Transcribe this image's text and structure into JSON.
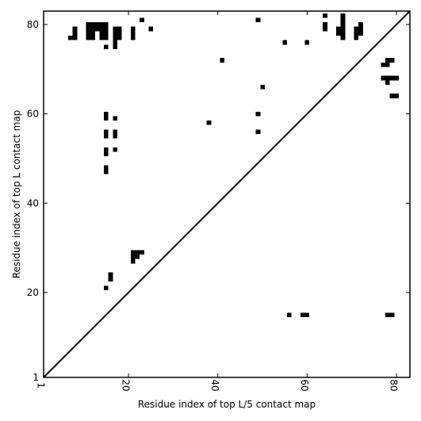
{
  "chart_data": {
    "type": "heatmap",
    "title": "",
    "xlabel": "Residue index of top L/5 contact map",
    "ylabel": "Residue index of top L contact map",
    "xlim": [
      1,
      83
    ],
    "ylim": [
      1,
      83
    ],
    "x_ticks": [
      {
        "value": 1,
        "label": "1"
      },
      {
        "value": 20,
        "label": "20"
      },
      {
        "value": 40,
        "label": "40"
      },
      {
        "value": 60,
        "label": "60"
      },
      {
        "value": 80,
        "label": "80"
      }
    ],
    "y_ticks": [
      {
        "value": 1,
        "label": "1"
      },
      {
        "value": 20,
        "label": "20"
      },
      {
        "value": 40,
        "label": "40"
      },
      {
        "value": 60,
        "label": "60"
      },
      {
        "value": 80,
        "label": "80"
      }
    ],
    "x_tick_rotation": "vertical",
    "grid": false,
    "legend": "none",
    "diagonal": {
      "from": [
        1,
        1
      ],
      "to": [
        83,
        83
      ]
    },
    "contact_color": "#000000",
    "background_color": "#ffffff",
    "contacts": [
      [
        8,
        79
      ],
      [
        8,
        78
      ],
      [
        7,
        77
      ],
      [
        8,
        77
      ],
      [
        11,
        80
      ],
      [
        12,
        80
      ],
      [
        13,
        80
      ],
      [
        14,
        80
      ],
      [
        15,
        80
      ],
      [
        11,
        79
      ],
      [
        12,
        79
      ],
      [
        13,
        79
      ],
      [
        14,
        79
      ],
      [
        15,
        79
      ],
      [
        11,
        78
      ],
      [
        12,
        78
      ],
      [
        14,
        78
      ],
      [
        15,
        78
      ],
      [
        11,
        77
      ],
      [
        12,
        77
      ],
      [
        14,
        77
      ],
      [
        15,
        77
      ],
      [
        17,
        79
      ],
      [
        18,
        79
      ],
      [
        17,
        78
      ],
      [
        18,
        78
      ],
      [
        17,
        77
      ],
      [
        18,
        77
      ],
      [
        17,
        76
      ],
      [
        17,
        75
      ],
      [
        15,
        75
      ],
      [
        21,
        79
      ],
      [
        21,
        78
      ],
      [
        21,
        77
      ],
      [
        23,
        81
      ],
      [
        25,
        79
      ],
      [
        49,
        81
      ],
      [
        41,
        72
      ],
      [
        55,
        76
      ],
      [
        60,
        76
      ],
      [
        50,
        66
      ],
      [
        64,
        82
      ],
      [
        64,
        80
      ],
      [
        64,
        79
      ],
      [
        68,
        82
      ],
      [
        68,
        81
      ],
      [
        68,
        80
      ],
      [
        67,
        79
      ],
      [
        68,
        79
      ],
      [
        67,
        78
      ],
      [
        68,
        78
      ],
      [
        68,
        77
      ],
      [
        72,
        80
      ],
      [
        71,
        79
      ],
      [
        72,
        79
      ],
      [
        71,
        78
      ],
      [
        72,
        78
      ],
      [
        71,
        77
      ],
      [
        78,
        72
      ],
      [
        79,
        72
      ],
      [
        77,
        71
      ],
      [
        78,
        71
      ],
      [
        77,
        68
      ],
      [
        78,
        68
      ],
      [
        79,
        68
      ],
      [
        80,
        68
      ],
      [
        78,
        67
      ],
      [
        79,
        64
      ],
      [
        80,
        64
      ],
      [
        15,
        60
      ],
      [
        15,
        59
      ],
      [
        17,
        59
      ],
      [
        15,
        56
      ],
      [
        17,
        56
      ],
      [
        15,
        55
      ],
      [
        17,
        55
      ],
      [
        15,
        52
      ],
      [
        17,
        52
      ],
      [
        15,
        51
      ],
      [
        15,
        48
      ],
      [
        15,
        47
      ],
      [
        38,
        58
      ],
      [
        49,
        60
      ],
      [
        49,
        56
      ],
      [
        21,
        29
      ],
      [
        22,
        29
      ],
      [
        23,
        29
      ],
      [
        21,
        28
      ],
      [
        22,
        28
      ],
      [
        21,
        27
      ],
      [
        16,
        24
      ],
      [
        16,
        23
      ],
      [
        15,
        21
      ],
      [
        56,
        15
      ],
      [
        59,
        15
      ],
      [
        60,
        15
      ],
      [
        78,
        15
      ],
      [
        79,
        15
      ]
    ]
  }
}
